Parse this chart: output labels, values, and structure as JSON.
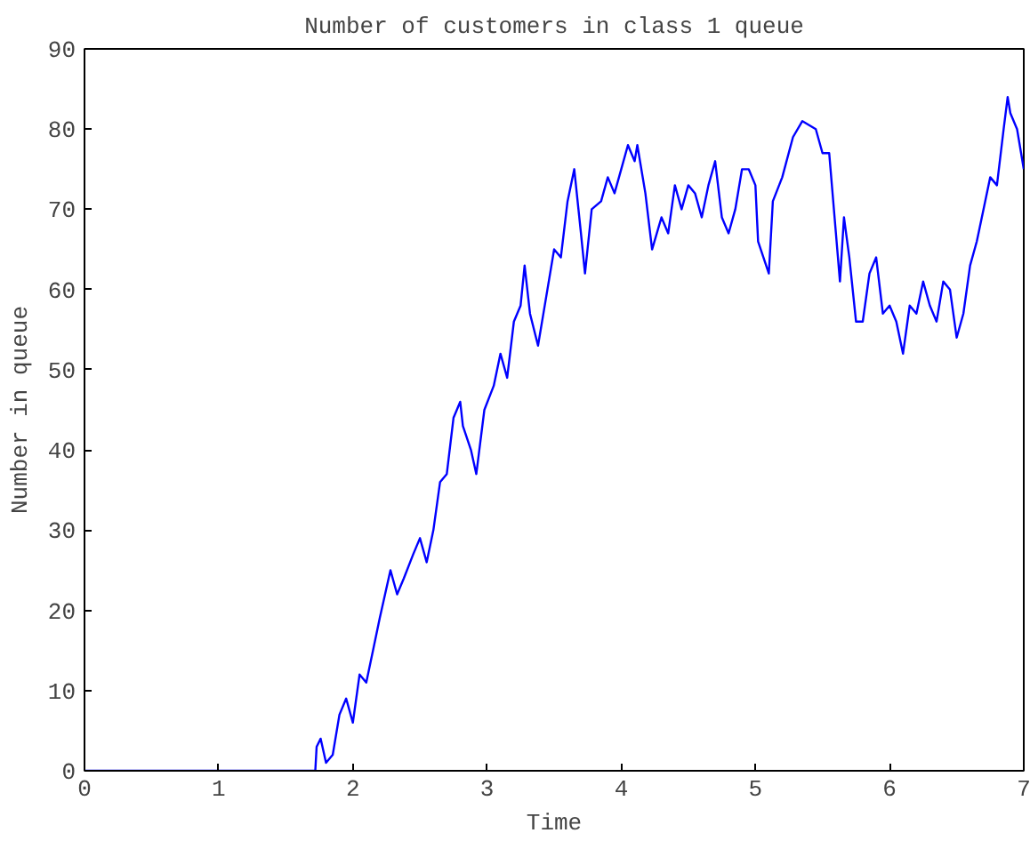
{
  "chart_data": {
    "type": "line",
    "title": "Number of customers in class 1 queue",
    "xlabel": "Time",
    "ylabel": "Number in queue",
    "xlim": [
      0,
      7
    ],
    "ylim": [
      0,
      90
    ],
    "xticks": [
      0,
      1,
      2,
      3,
      4,
      5,
      6,
      7
    ],
    "yticks": [
      0,
      10,
      20,
      30,
      40,
      50,
      60,
      70,
      80,
      90
    ],
    "grid": false,
    "marker": "none",
    "line_style": "solid",
    "series": [
      {
        "color": "#0000ff",
        "x": [
          0,
          1.72,
          1.73,
          1.76,
          1.8,
          1.85,
          1.9,
          1.95,
          2.0,
          2.05,
          2.1,
          2.15,
          2.2,
          2.28,
          2.33,
          2.38,
          2.45,
          2.5,
          2.55,
          2.6,
          2.65,
          2.7,
          2.75,
          2.8,
          2.82,
          2.88,
          2.92,
          2.98,
          3.05,
          3.1,
          3.15,
          3.2,
          3.25,
          3.28,
          3.32,
          3.38,
          3.45,
          3.5,
          3.55,
          3.6,
          3.65,
          3.7,
          3.73,
          3.78,
          3.85,
          3.9,
          3.95,
          4.0,
          4.05,
          4.1,
          4.12,
          4.18,
          4.23,
          4.3,
          4.35,
          4.4,
          4.45,
          4.5,
          4.55,
          4.6,
          4.65,
          4.7,
          4.75,
          4.8,
          4.85,
          4.9,
          4.95,
          5.0,
          5.02,
          5.06,
          5.1,
          5.13,
          5.2,
          5.28,
          5.35,
          5.45,
          5.5,
          5.55,
          5.6,
          5.63,
          5.66,
          5.7,
          5.75,
          5.8,
          5.85,
          5.9,
          5.95,
          6.0,
          6.05,
          6.1,
          6.15,
          6.2,
          6.25,
          6.3,
          6.35,
          6.4,
          6.45,
          6.5,
          6.55,
          6.6,
          6.65,
          6.7,
          6.75,
          6.8,
          6.85,
          6.88,
          6.9,
          6.95,
          7.0
        ],
        "values": [
          0,
          0,
          3,
          4,
          1,
          2,
          7,
          9,
          6,
          12,
          11,
          15,
          19,
          25,
          22,
          24,
          27,
          29,
          26,
          30,
          36,
          37,
          44,
          46,
          43,
          40,
          37,
          45,
          48,
          52,
          49,
          56,
          58,
          63,
          57,
          53,
          60,
          65,
          64,
          71,
          75,
          67,
          62,
          70,
          71,
          74,
          72,
          75,
          78,
          76,
          78,
          72,
          65,
          69,
          67,
          73,
          70,
          73,
          72,
          69,
          73,
          76,
          69,
          67,
          70,
          75,
          75,
          73,
          66,
          64,
          62,
          71,
          74,
          79,
          81,
          80,
          77,
          77,
          67,
          61,
          69,
          64,
          56,
          56,
          62,
          64,
          57,
          58,
          56,
          52,
          58,
          57,
          61,
          58,
          56,
          61,
          60,
          54,
          57,
          63,
          66,
          70,
          74,
          73,
          80,
          84,
          82,
          80,
          75
        ]
      }
    ]
  }
}
